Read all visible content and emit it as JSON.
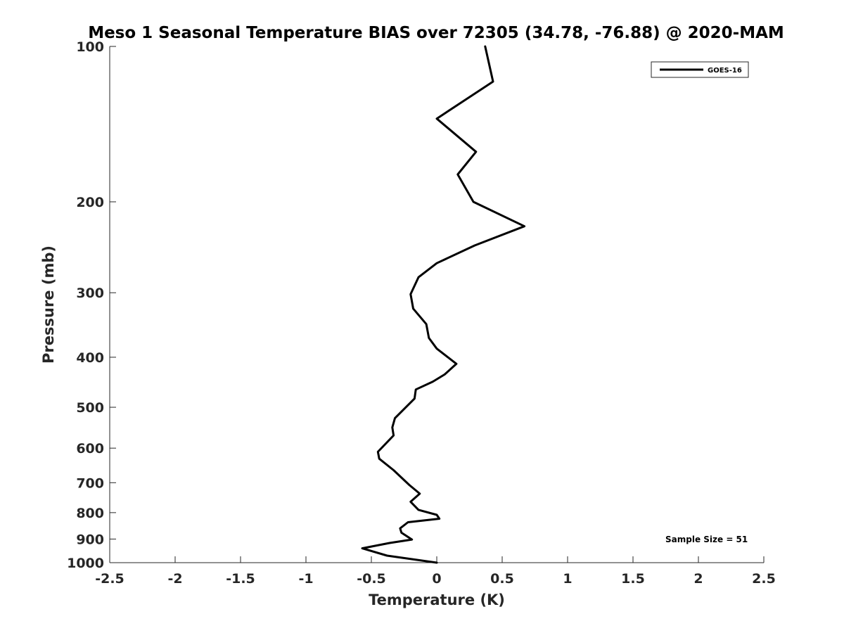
{
  "chart_data": {
    "type": "line",
    "title": "Meso 1 Seasonal Temperature BIAS over 72305 (34.78, -76.88) @ 2020-MAM",
    "xlabel": "Temperature (K)",
    "ylabel": "Pressure (mb)",
    "xlim": [
      -2.5,
      2.5
    ],
    "ylim": [
      1000,
      100
    ],
    "yscale": "log",
    "y_reversed": true,
    "grid": false,
    "legend_position": "top-right",
    "x_ticks": [
      "-2.5",
      "-2",
      "-1.5",
      "-1",
      "-0.5",
      "0",
      "0.5",
      "1",
      "1.5",
      "2",
      "2.5"
    ],
    "x_tick_values": [
      -2.5,
      -2,
      -1.5,
      -1,
      -0.5,
      0,
      0.5,
      1,
      1.5,
      2,
      2.5
    ],
    "y_ticks": [
      "100",
      "200",
      "300",
      "400",
      "500",
      "600",
      "700",
      "800",
      "900",
      "1000"
    ],
    "y_tick_values": [
      100,
      200,
      300,
      400,
      500,
      600,
      700,
      800,
      900,
      1000
    ],
    "series": [
      {
        "name": "GOES-16",
        "color": "#000000",
        "x": [
          0.37,
          0.43,
          0.0,
          0.3,
          0.16,
          0.28,
          0.67,
          0.29,
          0.0,
          -0.14,
          -0.2,
          -0.18,
          -0.08,
          -0.06,
          0.0,
          0.15,
          0.06,
          -0.03,
          -0.16,
          -0.17,
          -0.32,
          -0.34,
          -0.33,
          -0.45,
          -0.44,
          -0.33,
          -0.21,
          -0.13,
          -0.2,
          -0.14,
          0.0,
          0.02,
          -0.22,
          -0.28,
          -0.27,
          -0.19,
          -0.36,
          -0.57,
          -0.38,
          0.0
        ],
        "y": [
          100,
          117,
          138,
          160,
          177,
          200,
          223,
          243,
          263,
          280,
          302,
          322,
          345,
          367,
          385,
          412,
          432,
          446,
          462,
          481,
          525,
          547,
          567,
          610,
          629,
          662,
          707,
          735,
          762,
          790,
          808,
          822,
          835,
          858,
          875,
          902,
          916,
          938,
          969,
          1000
        ]
      }
    ],
    "annotations": [
      "Sample Size = 51"
    ]
  }
}
